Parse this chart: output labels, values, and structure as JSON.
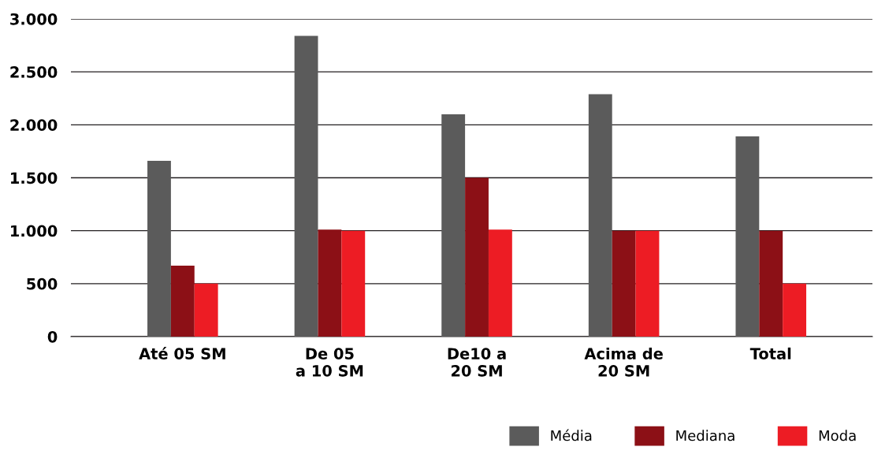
{
  "chart_data": {
    "type": "bar",
    "categories": [
      "Até 05 SM",
      "De 05\na 10 SM",
      "De10 a\n20 SM",
      "Acima de\n20 SM",
      "Total"
    ],
    "series": [
      {
        "name": "Média",
        "color": "#5b5b5b",
        "values": [
          1660,
          2840,
          2100,
          2290,
          1890
        ]
      },
      {
        "name": "Mediana",
        "color": "#8c1016",
        "values": [
          670,
          1010,
          1500,
          1000,
          1000
        ]
      },
      {
        "name": "Moda",
        "color": "#ed1c24",
        "values": [
          500,
          1000,
          1010,
          1000,
          500
        ]
      }
    ],
    "ylim": [
      0,
      3000
    ],
    "yticks": [
      0,
      500,
      {
        "value": 1000,
        "label": "1.000"
      },
      {
        "value": 1500,
        "label": "1.500"
      },
      {
        "value": 2000,
        "label": "2.000"
      },
      {
        "value": 2500,
        "label": "2.500"
      },
      {
        "value": 3000,
        "label": "3.000"
      }
    ],
    "grid": "y",
    "legend": "bottom right"
  }
}
